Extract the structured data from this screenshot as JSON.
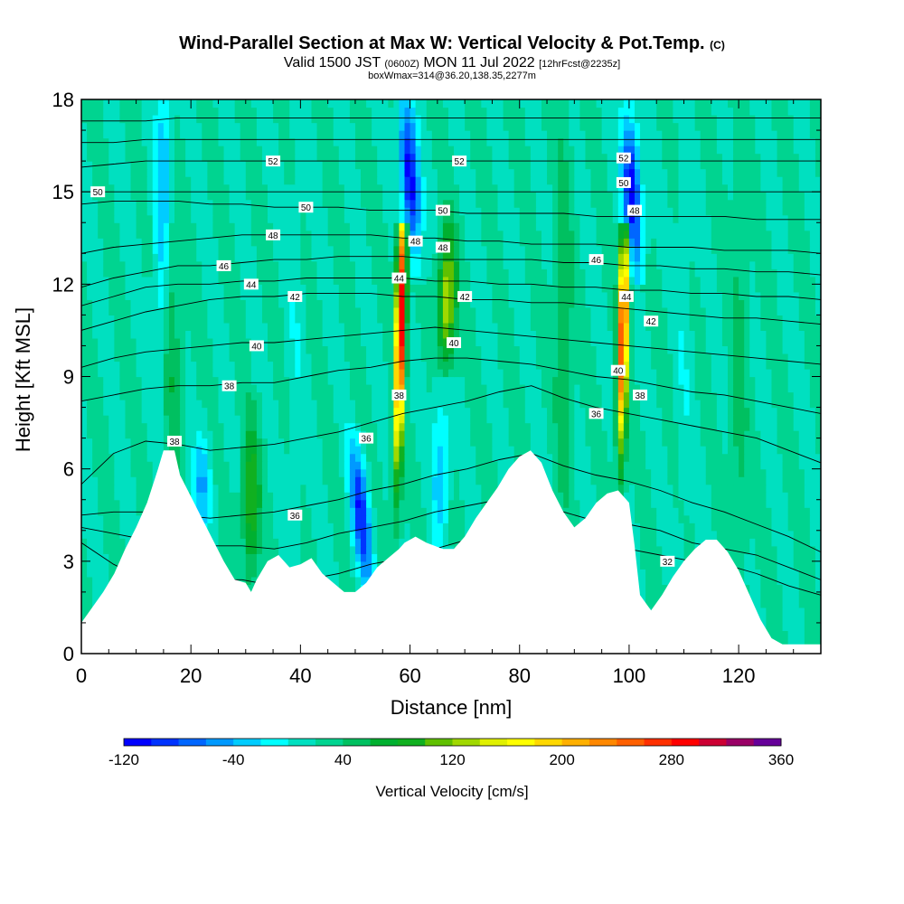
{
  "chart_data": {
    "type": "heatmap",
    "title": "Wind-Parallel Section at Max W: Vertical Velocity & Pot.Temp.",
    "title_mark": "(C)",
    "subtitle_main": "Valid 1500 JST",
    "subtitle_utc": "(0600Z)",
    "subtitle_date": "MON 11 Jul 2022",
    "subtitle_fcst": "[12hrFcst@2235z]",
    "subtitle2": "boxWmax=314@36.20,138.35,2277m",
    "xlabel": "Distance [nm]",
    "ylabel": "Height [Kft MSL]",
    "xlim": [
      0,
      135
    ],
    "ylim": [
      0,
      18
    ],
    "x_ticks": [
      "0",
      "20",
      "40",
      "60",
      "80",
      "100",
      "120"
    ],
    "y_ticks": [
      "0",
      "3",
      "6",
      "9",
      "12",
      "15",
      "18"
    ],
    "colorbar": {
      "title": "Vertical Velocity [cm/s]",
      "min": -120,
      "max": 360,
      "step": 20,
      "tick_labels": [
        "-120",
        "-40",
        "40",
        "120",
        "200",
        "280",
        "360"
      ],
      "colors": [
        "#0000ff",
        "#0033ff",
        "#0066ff",
        "#0099ff",
        "#00ccff",
        "#00ffff",
        "#00e0c0",
        "#00d490",
        "#00c060",
        "#00b030",
        "#10b020",
        "#60c000",
        "#a0d800",
        "#e0f000",
        "#ffff00",
        "#ffd800",
        "#ffb000",
        "#ff8800",
        "#ff6000",
        "#ff3000",
        "#ff0000",
        "#cc0033",
        "#990066",
        "#660099"
      ]
    },
    "background_w": 20,
    "terrain_kft": [
      [
        0,
        1.0
      ],
      [
        2,
        1.5
      ],
      [
        4,
        2.0
      ],
      [
        6,
        2.6
      ],
      [
        8,
        3.4
      ],
      [
        10,
        4.1
      ],
      [
        12,
        4.9
      ],
      [
        14,
        6.0
      ],
      [
        15,
        6.6
      ],
      [
        17,
        6.6
      ],
      [
        18,
        5.8
      ],
      [
        20,
        5.1
      ],
      [
        22,
        4.4
      ],
      [
        24,
        3.7
      ],
      [
        26,
        3.0
      ],
      [
        28,
        2.4
      ],
      [
        30,
        2.3
      ],
      [
        31,
        2.0
      ],
      [
        32,
        2.4
      ],
      [
        34,
        3.0
      ],
      [
        36,
        3.2
      ],
      [
        38,
        2.8
      ],
      [
        40,
        2.9
      ],
      [
        42,
        3.1
      ],
      [
        44,
        2.6
      ],
      [
        46,
        2.3
      ],
      [
        48,
        2.0
      ],
      [
        50,
        2.0
      ],
      [
        52,
        2.3
      ],
      [
        54,
        2.8
      ],
      [
        56,
        3.1
      ],
      [
        58,
        3.4
      ],
      [
        59,
        3.6
      ],
      [
        61,
        3.8
      ],
      [
        63,
        3.6
      ],
      [
        66,
        3.4
      ],
      [
        68,
        3.4
      ],
      [
        70,
        3.8
      ],
      [
        72,
        4.4
      ],
      [
        74,
        4.9
      ],
      [
        76,
        5.4
      ],
      [
        78,
        6.0
      ],
      [
        80,
        6.4
      ],
      [
        82,
        6.6
      ],
      [
        84,
        6.2
      ],
      [
        86,
        5.3
      ],
      [
        88,
        4.6
      ],
      [
        90,
        4.1
      ],
      [
        92,
        4.4
      ],
      [
        94,
        4.9
      ],
      [
        96,
        5.2
      ],
      [
        98,
        5.3
      ],
      [
        100,
        4.9
      ],
      [
        101,
        3.5
      ],
      [
        102,
        1.9
      ],
      [
        104,
        1.4
      ],
      [
        106,
        1.9
      ],
      [
        108,
        2.5
      ],
      [
        110,
        3.0
      ],
      [
        112,
        3.4
      ],
      [
        114,
        3.7
      ],
      [
        116,
        3.7
      ],
      [
        118,
        3.3
      ],
      [
        120,
        2.7
      ],
      [
        122,
        1.9
      ],
      [
        124,
        1.1
      ],
      [
        126,
        0.5
      ],
      [
        128,
        0.3
      ],
      [
        132,
        0.3
      ],
      [
        135,
        0.3
      ]
    ],
    "velocity_features": [
      {
        "x": 58.3,
        "lean_kft_per_kft": 0.12,
        "y_from": 3.6,
        "y_to": 13.5,
        "peak_y": 10.8,
        "w_peak": 314
      },
      {
        "x": 98.9,
        "lean_kft_per_kft": 0.1,
        "y_from": 5.3,
        "y_to": 13.5,
        "peak_y": 10.5,
        "w_peak": 290
      },
      {
        "x": 60.0,
        "lean_kft_per_kft": -0.35,
        "y_from": 12.5,
        "y_to": 18,
        "peak_y": 15.5,
        "w_peak": -120
      },
      {
        "x": 100.5,
        "lean_kft_per_kft": -0.3,
        "y_from": 12.5,
        "y_to": 18,
        "peak_y": 15.0,
        "w_peak": -120
      },
      {
        "x": 51.0,
        "lean_kft_per_kft": -0.5,
        "y_from": 2.0,
        "y_to": 7.0,
        "peak_y": 4.5,
        "w_peak": -100
      },
      {
        "x": 66.8,
        "lean_kft_per_kft": 0.08,
        "y_from": 9.5,
        "y_to": 14.5,
        "peak_y": 11.5,
        "w_peak": 140
      },
      {
        "x": 65.5,
        "lean_kft_per_kft": 0.1,
        "y_from": 3.4,
        "y_to": 9.5,
        "peak_y": 6.0,
        "w_peak": -30
      },
      {
        "x": 16.5,
        "lean_kft_per_kft": 0,
        "y_from": 6.6,
        "y_to": 18,
        "peak_y": 10.5,
        "w_peak": 60
      },
      {
        "x": 31.0,
        "lean_kft_per_kft": 0,
        "y_from": 2.3,
        "y_to": 8.0,
        "peak_y": 5.0,
        "w_peak": 100
      },
      {
        "x": 15.0,
        "lean_kft_per_kft": 0.1,
        "y_from": 6.6,
        "y_to": 18,
        "peak_y": 15,
        "w_peak": -40
      },
      {
        "x": 22.0,
        "lean_kft_per_kft": 0,
        "y_from": 4.0,
        "y_to": 7.5,
        "peak_y": 5.5,
        "w_peak": -40
      },
      {
        "x": 39.0,
        "lean_kft_per_kft": 0,
        "y_from": 3.0,
        "y_to": 18,
        "peak_y": 10,
        "w_peak": 5
      },
      {
        "x": 88.0,
        "lean_kft_per_kft": 0,
        "y_from": 5.0,
        "y_to": 18,
        "peak_y": 11,
        "w_peak": 60
      },
      {
        "x": 110.0,
        "lean_kft_per_kft": 0,
        "y_from": 3.0,
        "y_to": 18,
        "peak_y": 10,
        "w_peak": 5
      },
      {
        "x": 120.0,
        "lean_kft_per_kft": 0,
        "y_from": 2.0,
        "y_to": 18,
        "peak_y": 8,
        "w_peak": 50
      }
    ],
    "theta_contours": [
      {
        "level": "32",
        "label_at": [
          107,
          3.0
        ],
        "y": [
          3.6,
          2.9,
          2.4,
          2.4,
          2.4,
          2.4,
          2.2,
          2.4,
          2.6,
          2.9,
          3.1,
          3.4,
          3.7,
          3.9,
          4.1,
          3.8,
          3.5,
          3.4,
          3.2,
          3.0,
          2.9,
          2.6,
          2.2,
          1.9
        ]
      },
      {
        "level": "34",
        "y": [
          4.1,
          3.9,
          3.7,
          3.6,
          3.5,
          3.5,
          3.4,
          3.6,
          3.9,
          4.1,
          4.3,
          4.6,
          4.8,
          5.0,
          5.0,
          4.6,
          4.3,
          4.2,
          4.0,
          3.6,
          3.4,
          3.2,
          2.8,
          2.4
        ]
      },
      {
        "level": "36",
        "label_at": [
          39,
          4.5
        ],
        "y": [
          4.5,
          4.6,
          4.6,
          4.5,
          4.4,
          4.5,
          4.6,
          4.8,
          5.0,
          5.3,
          5.5,
          5.8,
          6.0,
          6.3,
          6.5,
          6.1,
          5.8,
          5.6,
          5.3,
          4.9,
          4.6,
          4.2,
          3.8,
          3.3
        ]
      },
      {
        "level": "38",
        "label_at": [
          17,
          6.9
        ],
        "y": [
          5.5,
          6.5,
          6.9,
          6.8,
          6.6,
          6.7,
          6.8,
          7.0,
          7.2,
          7.5,
          7.8,
          8.0,
          8.2,
          8.5,
          8.7,
          8.3,
          8.0,
          7.8,
          7.6,
          7.4,
          7.2,
          7.0,
          6.6,
          6.2
        ]
      },
      {
        "level": "38",
        "label_at": [
          27,
          8.7
        ],
        "y": [
          8.2,
          8.4,
          8.6,
          8.7,
          8.7,
          8.8,
          8.8,
          9.0,
          9.2,
          9.3,
          9.5,
          9.6,
          9.6,
          9.5,
          9.4,
          9.2,
          9.0,
          8.9,
          8.7,
          8.5,
          8.4,
          8.2,
          8.0,
          7.8
        ]
      },
      {
        "level": "40",
        "label_at": [
          32,
          10.0
        ],
        "y": [
          9.3,
          9.6,
          9.8,
          9.9,
          10.0,
          10.1,
          10.1,
          10.2,
          10.3,
          10.4,
          10.5,
          10.6,
          10.5,
          10.4,
          10.3,
          10.2,
          10.1,
          10.0,
          9.9,
          9.8,
          9.7,
          9.6,
          9.5,
          9.4
        ]
      },
      {
        "level": "42",
        "label_at": [
          39,
          11.6
        ],
        "y": [
          10.5,
          10.8,
          11.1,
          11.3,
          11.5,
          11.6,
          11.6,
          11.7,
          11.7,
          11.7,
          11.6,
          11.6,
          11.5,
          11.5,
          11.4,
          11.4,
          11.3,
          11.2,
          11.1,
          11.0,
          10.9,
          10.9,
          10.8,
          10.7
        ]
      },
      {
        "level": "44",
        "label_at": [
          31,
          12.0
        ],
        "y": [
          11.3,
          11.6,
          11.9,
          12.0,
          12.0,
          12.1,
          12.1,
          12.2,
          12.2,
          12.2,
          12.2,
          12.1,
          12.1,
          12.0,
          12.0,
          11.9,
          11.9,
          11.8,
          11.8,
          11.7,
          11.7,
          11.6,
          11.6,
          11.5
        ]
      },
      {
        "level": "46",
        "label_at": [
          26,
          12.6
        ],
        "y": [
          11.9,
          12.2,
          12.4,
          12.6,
          12.6,
          12.7,
          12.8,
          12.8,
          12.9,
          12.9,
          12.9,
          12.8,
          12.8,
          12.8,
          12.8,
          12.7,
          12.7,
          12.6,
          12.6,
          12.5,
          12.5,
          12.4,
          12.4,
          12.3
        ]
      },
      {
        "level": "48",
        "label_at": [
          35,
          13.6
        ],
        "y": [
          13.0,
          13.2,
          13.3,
          13.4,
          13.5,
          13.6,
          13.6,
          13.6,
          13.6,
          13.6,
          13.5,
          13.5,
          13.4,
          13.4,
          13.3,
          13.3,
          13.3,
          13.2,
          13.2,
          13.2,
          13.1,
          13.1,
          13.1,
          13.0
        ]
      },
      {
        "level": "50",
        "label_at": [
          41,
          14.5
        ],
        "y": [
          14.6,
          14.7,
          14.7,
          14.7,
          14.6,
          14.6,
          14.5,
          14.5,
          14.5,
          14.4,
          14.4,
          14.4,
          14.3,
          14.3,
          14.3,
          14.3,
          14.2,
          14.2,
          14.2,
          14.2,
          14.2,
          14.1,
          14.1,
          14.1
        ]
      },
      {
        "level": "50",
        "label_at": [
          3,
          15.0
        ],
        "y": [
          15.0,
          15.0,
          15.0,
          15.0,
          15.0,
          15.0,
          15.0,
          15.0,
          15.0,
          15.0,
          15.0,
          15.0,
          15.0,
          15.0,
          15.0,
          15.0,
          15.0,
          15.0,
          15.0,
          15.0,
          15.0,
          15.0,
          15.0,
          15.0
        ]
      },
      {
        "level": "52",
        "label_at": [
          35,
          16.0
        ],
        "y": [
          15.8,
          15.9,
          16.0,
          16.0,
          16.0,
          16.0,
          16.0,
          16.0,
          16.0,
          16.0,
          16.0,
          16.0,
          16.0,
          16.0,
          16.0,
          16.0,
          16.0,
          16.0,
          16.0,
          16.0,
          16.0,
          16.0,
          16.0,
          16.0
        ]
      },
      {
        "level": "",
        "y": [
          16.6,
          16.6,
          16.7,
          16.7,
          16.7,
          16.7,
          16.7,
          16.7,
          16.7,
          16.7,
          16.7,
          16.7,
          16.7,
          16.7,
          16.7,
          16.7,
          16.7,
          16.7,
          16.7,
          16.7,
          16.7,
          16.7,
          16.7,
          16.7
        ]
      },
      {
        "level": "",
        "y": [
          17.3,
          17.3,
          17.3,
          17.4,
          17.4,
          17.4,
          17.4,
          17.4,
          17.4,
          17.4,
          17.4,
          17.4,
          17.4,
          17.4,
          17.4,
          17.4,
          17.4,
          17.4,
          17.4,
          17.4,
          17.4,
          17.4,
          17.4,
          17.4
        ]
      }
    ],
    "extra_contour_labels": [
      {
        "text": "52",
        "x": 69,
        "y": 16.0
      },
      {
        "text": "50",
        "x": 66,
        "y": 14.4
      },
      {
        "text": "48",
        "x": 61,
        "y": 13.4
      },
      {
        "text": "48",
        "x": 66,
        "y": 13.2
      },
      {
        "text": "46",
        "x": 94,
        "y": 12.8
      },
      {
        "text": "44",
        "x": 58,
        "y": 12.2
      },
      {
        "text": "42",
        "x": 70,
        "y": 11.6
      },
      {
        "text": "40",
        "x": 68,
        "y": 10.1
      },
      {
        "text": "36",
        "x": 52,
        "y": 7.0
      },
      {
        "text": "38",
        "x": 58,
        "y": 8.4
      },
      {
        "text": "36",
        "x": 94,
        "y": 7.8
      },
      {
        "text": "52",
        "x": 99,
        "y": 16.1
      },
      {
        "text": "50",
        "x": 99,
        "y": 15.3
      },
      {
        "text": "48",
        "x": 101,
        "y": 14.4
      },
      {
        "text": "44",
        "x": 99.5,
        "y": 11.6
      },
      {
        "text": "42",
        "x": 104,
        "y": 10.8
      },
      {
        "text": "40",
        "x": 98,
        "y": 9.2
      },
      {
        "text": "38",
        "x": 102,
        "y": 8.4
      }
    ]
  }
}
